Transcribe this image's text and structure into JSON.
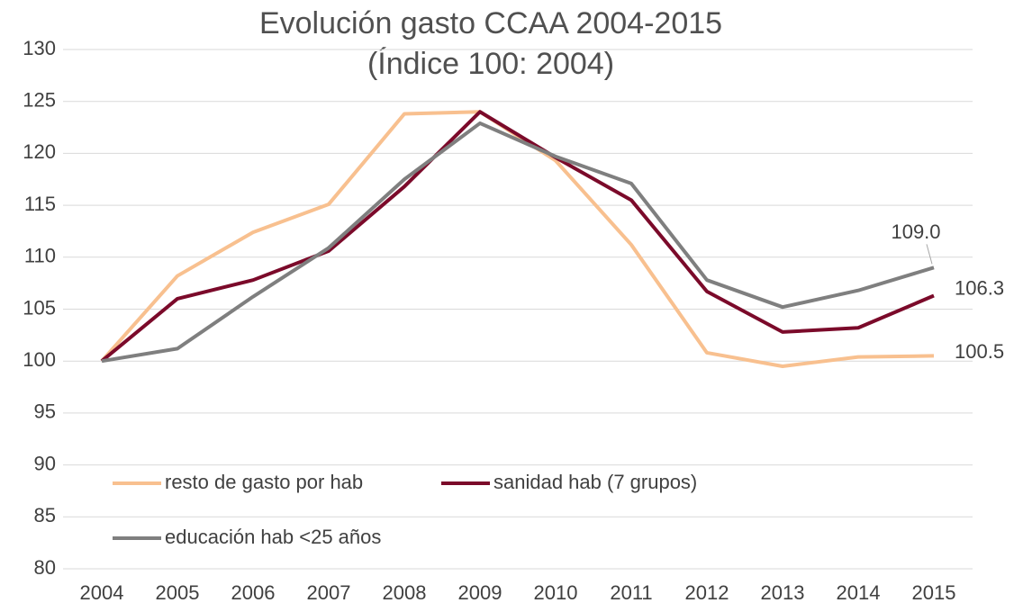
{
  "chart_data": {
    "type": "line",
    "title": "Evolución gasto CCAA 2004-2015",
    "subtitle": "(Índice 100: 2004)",
    "categories": [
      "2004",
      "2005",
      "2006",
      "2007",
      "2008",
      "2009",
      "2010",
      "2011",
      "2012",
      "2013",
      "2014",
      "2015"
    ],
    "series": [
      {
        "name": "resto de gasto por hab",
        "color": "#f8c08f",
        "values": [
          100,
          108.2,
          112.4,
          115.1,
          123.8,
          124.0,
          119.3,
          111.2,
          100.8,
          99.5,
          100.4,
          100.5
        ],
        "value_labels": [
          null,
          null,
          null,
          null,
          null,
          null,
          null,
          null,
          null,
          null,
          null,
          "100.5"
        ]
      },
      {
        "name": "sanidad hab (7 grupos)",
        "color": "#7b0a2a",
        "values": [
          100,
          106.0,
          107.8,
          110.6,
          116.8,
          124.0,
          119.6,
          115.5,
          106.7,
          102.8,
          103.2,
          106.3
        ],
        "value_labels": [
          null,
          null,
          null,
          null,
          null,
          null,
          null,
          null,
          null,
          null,
          null,
          "106.3"
        ]
      },
      {
        "name": "educación hab <25 años",
        "color": "#7f7f7f",
        "values": [
          100,
          101.2,
          106.2,
          110.9,
          117.5,
          122.9,
          119.7,
          117.1,
          107.8,
          105.2,
          106.8,
          109.0
        ],
        "value_labels": [
          null,
          null,
          null,
          null,
          null,
          null,
          null,
          null,
          null,
          null,
          null,
          "109.0"
        ]
      }
    ],
    "ylim": [
      80,
      130
    ],
    "yticks": [
      80,
      85,
      90,
      95,
      100,
      105,
      110,
      115,
      120,
      125,
      130
    ],
    "grid": true
  }
}
